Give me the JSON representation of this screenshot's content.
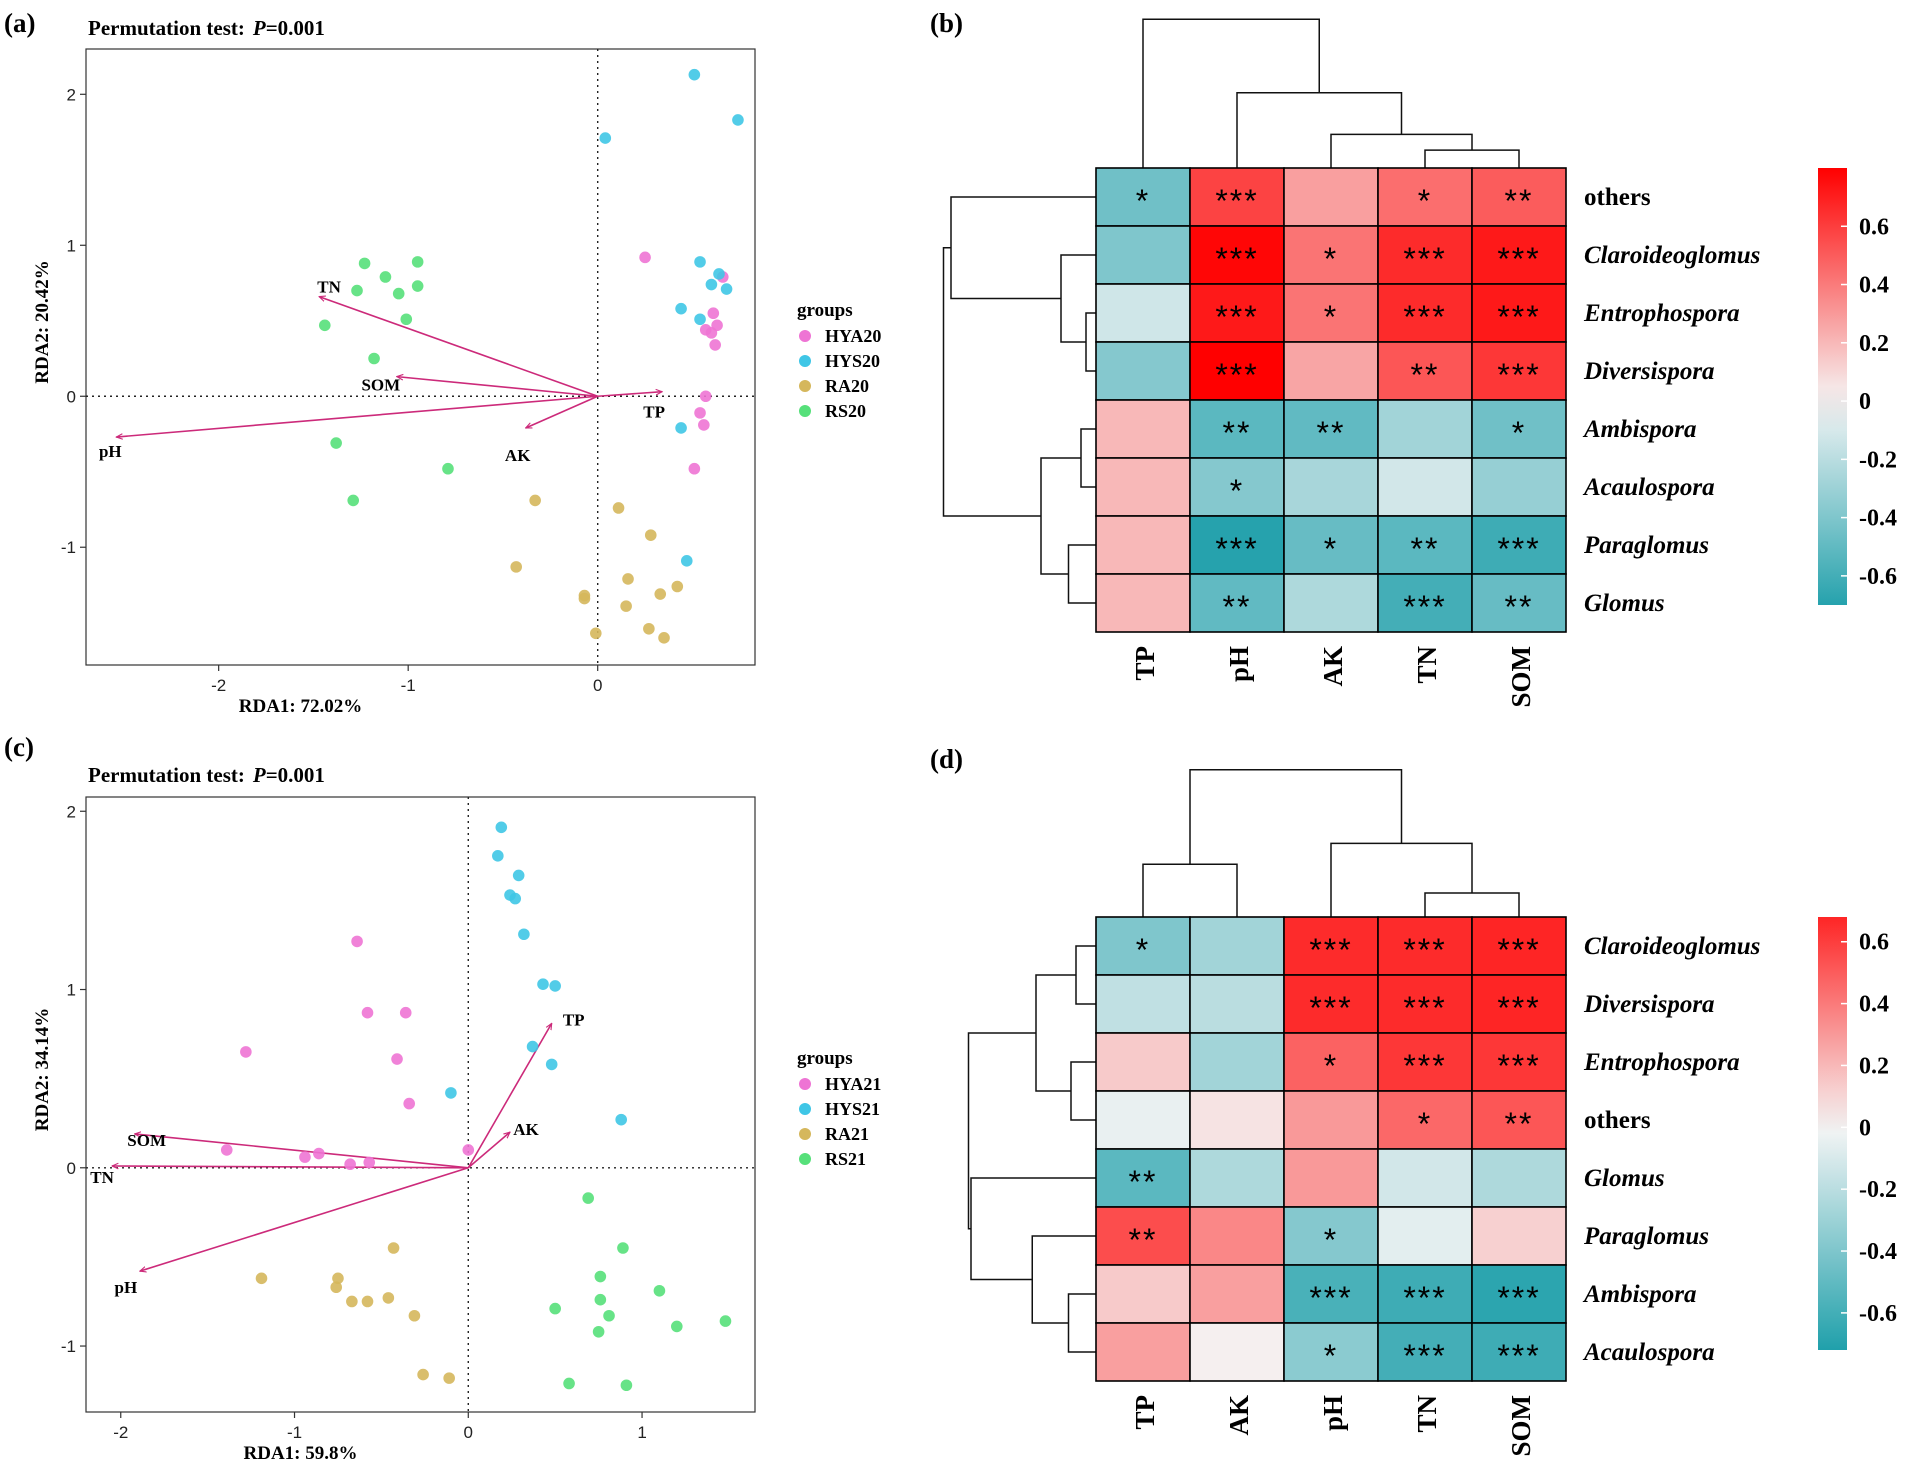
{
  "chart_data": [
    {
      "type": "scatter",
      "panel_label": "(a)",
      "title_prefix": "Permutation test:",
      "title_p": "P",
      "title_value": "=0.001",
      "xlabel": "RDA1: 72.02%",
      "ylabel": "RDA2: 20.42%",
      "xlim": [
        -2.7,
        0.83
      ],
      "ylim": [
        -1.78,
        2.3
      ],
      "xticks": [
        -2,
        -1,
        0
      ],
      "yticks": [
        -1,
        0,
        1,
        2
      ],
      "tick_labels_x": [
        "-2",
        "-1",
        "0"
      ],
      "tick_labels_y": [
        "-1",
        "0",
        "1",
        "2"
      ],
      "legend_title": "groups",
      "legend_position": "right",
      "series": [
        {
          "name": "HYA20",
          "color": "#ee74d4",
          "points": [
            [
              0.25,
              0.92
            ],
            [
              0.66,
              0.79
            ],
            [
              0.61,
              0.55
            ],
            [
              0.57,
              0.44
            ],
            [
              0.6,
              0.42
            ],
            [
              0.63,
              0.47
            ],
            [
              0.62,
              0.34
            ],
            [
              0.57,
              0.0
            ],
            [
              0.54,
              -0.11
            ],
            [
              0.56,
              -0.19
            ],
            [
              0.51,
              -0.48
            ]
          ]
        },
        {
          "name": "HYS20",
          "color": "#3fc6e6",
          "points": [
            [
              0.51,
              2.13
            ],
            [
              0.74,
              1.83
            ],
            [
              0.04,
              1.71
            ],
            [
              0.54,
              0.89
            ],
            [
              0.64,
              0.81
            ],
            [
              0.6,
              0.74
            ],
            [
              0.68,
              0.71
            ],
            [
              0.44,
              0.58
            ],
            [
              0.54,
              0.51
            ],
            [
              0.44,
              -0.21
            ],
            [
              0.47,
              -1.09
            ]
          ]
        },
        {
          "name": "RA20",
          "color": "#d5b75c",
          "points": [
            [
              -0.33,
              -0.69
            ],
            [
              0.11,
              -0.74
            ],
            [
              0.28,
              -0.92
            ],
            [
              -0.43,
              -1.13
            ],
            [
              0.16,
              -1.21
            ],
            [
              0.42,
              -1.26
            ],
            [
              -0.07,
              -1.32
            ],
            [
              -0.07,
              -1.34
            ],
            [
              0.33,
              -1.31
            ],
            [
              0.15,
              -1.39
            ],
            [
              0.27,
              -1.54
            ],
            [
              0.35,
              -1.6
            ],
            [
              -0.01,
              -1.57
            ]
          ]
        },
        {
          "name": "RS20",
          "color": "#56e07a",
          "points": [
            [
              -1.23,
              0.88
            ],
            [
              -0.95,
              0.89
            ],
            [
              -1.12,
              0.79
            ],
            [
              -1.05,
              0.68
            ],
            [
              -0.95,
              0.73
            ],
            [
              -1.27,
              0.7
            ],
            [
              -1.01,
              0.51
            ],
            [
              -1.44,
              0.47
            ],
            [
              -1.18,
              0.25
            ],
            [
              -1.38,
              -0.31
            ],
            [
              -0.79,
              -0.48
            ],
            [
              -1.29,
              -0.69
            ]
          ]
        }
      ],
      "arrows": [
        {
          "label": "TN",
          "x": -1.47,
          "y": 0.66
        },
        {
          "label": "SOM",
          "x": -1.06,
          "y": 0.13
        },
        {
          "label": "pH",
          "x": -2.54,
          "y": -0.27
        },
        {
          "label": "AK",
          "x": -0.38,
          "y": -0.21
        },
        {
          "label": "TP",
          "x": 0.34,
          "y": 0.03
        }
      ]
    },
    {
      "type": "heatmap",
      "panel_label": "(b)",
      "columns": [
        "TP",
        "pH",
        "AK",
        "TN",
        "SOM"
      ],
      "rows": [
        "others",
        "Claroideoglomus",
        "Entrophospora",
        "Diversispora",
        "Ambispora",
        "Acaulospora",
        "Paraglomus",
        "Glomus"
      ],
      "values": [
        [
          -0.45,
          0.58,
          0.28,
          0.44,
          0.5
        ],
        [
          -0.4,
          0.78,
          0.42,
          0.66,
          0.72
        ],
        [
          -0.13,
          0.72,
          0.42,
          0.66,
          0.72
        ],
        [
          -0.38,
          0.8,
          0.26,
          0.52,
          0.62
        ],
        [
          0.2,
          -0.52,
          -0.5,
          -0.28,
          -0.45
        ],
        [
          0.2,
          -0.38,
          -0.26,
          -0.12,
          -0.32
        ],
        [
          0.2,
          -0.7,
          -0.48,
          -0.52,
          -0.62
        ],
        [
          0.2,
          -0.5,
          -0.24,
          -0.6,
          -0.48
        ]
      ],
      "stars": [
        [
          "*",
          "***",
          "",
          "*",
          "**"
        ],
        [
          "",
          "***",
          "*",
          "***",
          "***"
        ],
        [
          "",
          "***",
          "*",
          "***",
          "***"
        ],
        [
          "",
          "***",
          "",
          "**",
          "***"
        ],
        [
          "",
          "**",
          "**",
          "",
          "*"
        ],
        [
          "",
          "*",
          "",
          "",
          ""
        ],
        [
          "",
          "***",
          "*",
          "**",
          "***"
        ],
        [
          "",
          "**",
          "",
          "***",
          "**"
        ]
      ],
      "italic_rows": [
        false,
        true,
        true,
        true,
        true,
        true,
        true,
        true
      ],
      "colorbar": {
        "min": -0.7,
        "max": 0.8,
        "ticks": [
          0.6,
          0.4,
          0.2,
          0,
          -0.2,
          -0.4,
          -0.6
        ],
        "tick_labels": [
          "0.6",
          "0.4",
          "0.2",
          "0",
          "-0.2",
          "-0.4",
          "-0.6"
        ]
      }
    },
    {
      "type": "scatter",
      "panel_label": "(c)",
      "title_prefix": "Permutation test:",
      "title_p": "P",
      "title_value": "=0.001",
      "xlabel": "RDA1: 59.8%",
      "ylabel": "RDA2: 34.14%",
      "xlim": [
        -2.2,
        1.65
      ],
      "ylim": [
        -1.37,
        2.08
      ],
      "xticks": [
        -2,
        -1,
        0,
        1
      ],
      "yticks": [
        -1,
        0,
        1,
        2
      ],
      "tick_labels_x": [
        "-2",
        "-1",
        "0",
        "1"
      ],
      "tick_labels_y": [
        "-1",
        "0",
        "1",
        "2"
      ],
      "legend_title": "groups",
      "legend_position": "right",
      "series": [
        {
          "name": "HYA21",
          "color": "#ee74d4",
          "points": [
            [
              -0.64,
              1.27
            ],
            [
              -0.58,
              0.87
            ],
            [
              -0.36,
              0.87
            ],
            [
              -1.28,
              0.65
            ],
            [
              -0.41,
              0.61
            ],
            [
              -0.34,
              0.36
            ],
            [
              -1.39,
              0.1
            ],
            [
              -0.94,
              0.06
            ],
            [
              -0.86,
              0.08
            ],
            [
              -0.68,
              0.02
            ],
            [
              -0.57,
              0.03
            ],
            [
              0.0,
              0.1
            ]
          ]
        },
        {
          "name": "HYS21",
          "color": "#3fc6e6",
          "points": [
            [
              0.19,
              1.91
            ],
            [
              0.17,
              1.75
            ],
            [
              0.29,
              1.64
            ],
            [
              0.27,
              1.51
            ],
            [
              0.24,
              1.53
            ],
            [
              0.32,
              1.31
            ],
            [
              0.43,
              1.03
            ],
            [
              0.5,
              1.02
            ],
            [
              0.37,
              0.68
            ],
            [
              0.48,
              0.58
            ],
            [
              -0.1,
              0.42
            ],
            [
              0.88,
              0.27
            ]
          ]
        },
        {
          "name": "RA21",
          "color": "#d5b75c",
          "points": [
            [
              -1.19,
              -0.62
            ],
            [
              -0.75,
              -0.62
            ],
            [
              -0.43,
              -0.45
            ],
            [
              -0.76,
              -0.67
            ],
            [
              -0.46,
              -0.73
            ],
            [
              -0.67,
              -0.75
            ],
            [
              -0.58,
              -0.75
            ],
            [
              -0.31,
              -0.83
            ],
            [
              -0.26,
              -1.16
            ],
            [
              -0.11,
              -1.18
            ]
          ]
        },
        {
          "name": "RS21",
          "color": "#56e07a",
          "points": [
            [
              0.69,
              -0.17
            ],
            [
              0.89,
              -0.45
            ],
            [
              0.76,
              -0.61
            ],
            [
              0.5,
              -0.79
            ],
            [
              0.76,
              -0.74
            ],
            [
              1.1,
              -0.69
            ],
            [
              0.81,
              -0.83
            ],
            [
              0.75,
              -0.92
            ],
            [
              1.2,
              -0.89
            ],
            [
              1.48,
              -0.86
            ],
            [
              0.58,
              -1.21
            ],
            [
              0.91,
              -1.22
            ]
          ]
        }
      ],
      "arrows": [
        {
          "label": "SOM",
          "x": -1.92,
          "y": 0.19
        },
        {
          "label": "TN",
          "x": -2.05,
          "y": 0.01
        },
        {
          "label": "pH",
          "x": -1.89,
          "y": -0.58
        },
        {
          "label": "AK",
          "x": 0.24,
          "y": 0.2
        },
        {
          "label": "TP",
          "x": 0.48,
          "y": 0.81
        }
      ]
    },
    {
      "type": "heatmap",
      "panel_label": "(d)",
      "columns": [
        "TP",
        "AK",
        "pH",
        "TN",
        "SOM"
      ],
      "rows": [
        "Claroideoglomus",
        "Diversispora",
        "Entrophospora",
        "others",
        "Glomus",
        "Paraglomus",
        "Ambispora",
        "Acaulospora"
      ],
      "values": [
        [
          -0.4,
          -0.28,
          0.66,
          0.66,
          0.68
        ],
        [
          -0.18,
          -0.2,
          0.66,
          0.66,
          0.68
        ],
        [
          0.14,
          -0.28,
          0.48,
          0.62,
          0.62
        ],
        [
          -0.04,
          0.06,
          0.3,
          0.46,
          0.52
        ],
        [
          -0.52,
          -0.24,
          0.3,
          -0.12,
          -0.24
        ],
        [
          0.55,
          0.36,
          -0.38,
          -0.06,
          0.12
        ],
        [
          0.14,
          0.28,
          -0.58,
          -0.62,
          -0.68
        ],
        [
          0.28,
          0.02,
          -0.36,
          -0.6,
          -0.62
        ]
      ],
      "stars": [
        [
          "*",
          "",
          "***",
          "***",
          "***"
        ],
        [
          "",
          "",
          "***",
          "***",
          "***"
        ],
        [
          "",
          "",
          "*",
          "***",
          "***"
        ],
        [
          "",
          "",
          "",
          "*",
          "**"
        ],
        [
          "**",
          "",
          "",
          "",
          ""
        ],
        [
          "**",
          "",
          "*",
          "",
          ""
        ],
        [
          "",
          "",
          "***",
          "***",
          "***"
        ],
        [
          "",
          "",
          "*",
          "***",
          "***"
        ]
      ],
      "italic_rows": [
        true,
        true,
        true,
        false,
        true,
        true,
        true,
        true
      ],
      "colorbar": {
        "min": -0.72,
        "max": 0.68,
        "ticks": [
          0.6,
          0.4,
          0.2,
          0,
          -0.2,
          -0.4,
          -0.6
        ],
        "tick_labels": [
          "0.6",
          "0.4",
          "0.2",
          "0",
          "-0.2",
          "-0.4",
          "-0.6"
        ]
      }
    }
  ]
}
